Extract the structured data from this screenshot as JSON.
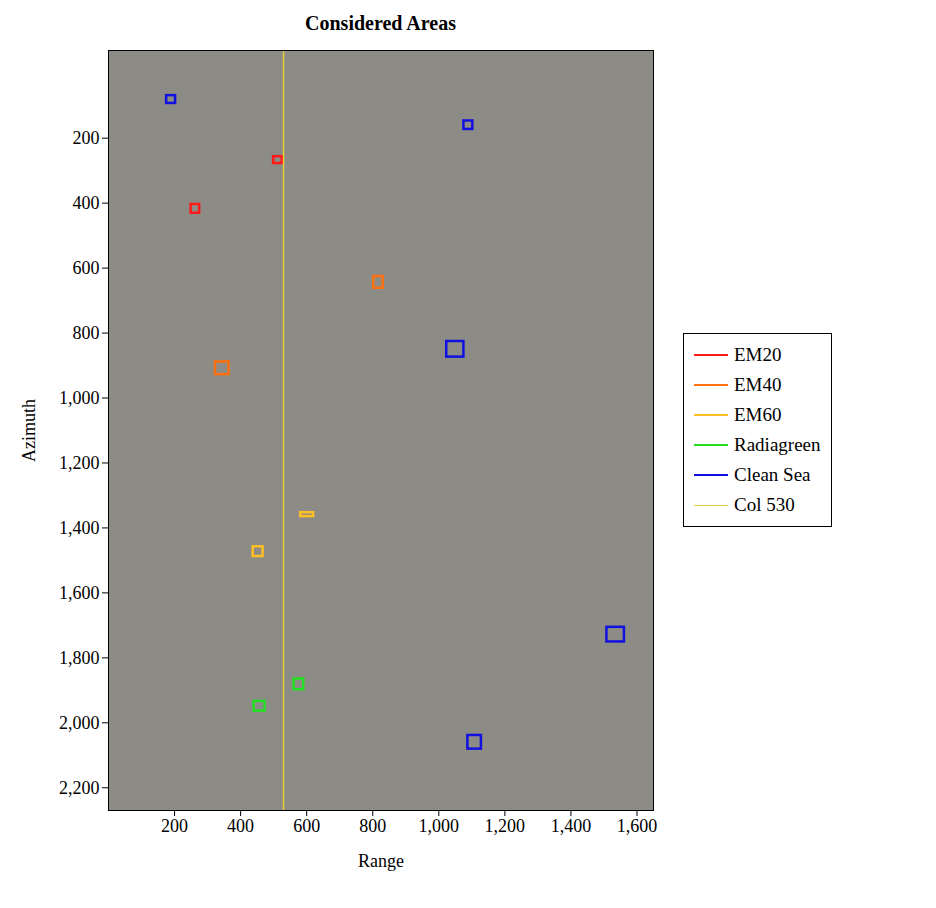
{
  "chart_data": {
    "type": "rect",
    "title": "Considered Areas",
    "x_label": "Range",
    "y_label": "Azimuth",
    "xlim": [
      0,
      1650
    ],
    "ylim": [
      2270,
      -70
    ],
    "xticks": [
      200,
      400,
      600,
      800,
      {
        "value": 1000,
        "label": "1,000"
      },
      {
        "value": 1200,
        "label": "1,200"
      },
      {
        "value": 1400,
        "label": "1,400"
      },
      {
        "value": 1600,
        "label": "1,600"
      }
    ],
    "yticks": [
      200,
      400,
      600,
      800,
      {
        "value": 1000,
        "label": "1,000"
      },
      {
        "value": 1200,
        "label": "1,200"
      },
      {
        "value": 1400,
        "label": "1,400"
      },
      {
        "value": 1600,
        "label": "1,600"
      },
      {
        "value": 1800,
        "label": "1,800"
      },
      {
        "value": 2000,
        "label": "2,000"
      },
      {
        "value": 2200,
        "label": "2,200"
      }
    ],
    "grid": false,
    "legend": "right",
    "series": [
      {
        "name": "EM20",
        "color": "#ff1a1a",
        "type": "rect",
        "values": [
          {
            "x1": 500,
            "x2": 526,
            "y1": 257,
            "y2": 278
          },
          {
            "x1": 250,
            "x2": 276,
            "y1": 404,
            "y2": 431
          }
        ]
      },
      {
        "name": "EM40",
        "color": "#ff7010",
        "type": "rect",
        "values": [
          {
            "x1": 803,
            "x2": 832,
            "y1": 626,
            "y2": 662
          },
          {
            "x1": 324,
            "x2": 365,
            "y1": 889,
            "y2": 928
          }
        ]
      },
      {
        "name": "EM60",
        "color": "#ffbf26",
        "type": "rect",
        "values": [
          {
            "x1": 582,
            "x2": 621,
            "y1": 1353,
            "y2": 1365
          },
          {
            "x1": 438,
            "x2": 468,
            "y1": 1458,
            "y2": 1488
          }
        ]
      },
      {
        "name": "Radiagreen",
        "color": "#22e022",
        "type": "rect",
        "values": [
          {
            "x1": 562,
            "x2": 591,
            "y1": 1865,
            "y2": 1898
          },
          {
            "x1": 441,
            "x2": 474,
            "y1": 1934,
            "y2": 1964
          }
        ]
      },
      {
        "name": "Clean Sea",
        "color": "#1010e0",
        "type": "rect",
        "values": [
          {
            "x1": 176,
            "x2": 203,
            "y1": 69,
            "y2": 93
          },
          {
            "x1": 1076,
            "x2": 1103,
            "y1": 147,
            "y2": 173
          },
          {
            "x1": 1024,
            "x2": 1076,
            "y1": 826,
            "y2": 874
          },
          {
            "x1": 1509,
            "x2": 1562,
            "y1": 1706,
            "y2": 1751
          },
          {
            "x1": 1088,
            "x2": 1129,
            "y1": 2039,
            "y2": 2081
          }
        ]
      },
      {
        "name": "Col 530",
        "color": "#e8cf3a",
        "type": "line",
        "values": [
          530
        ]
      }
    ]
  }
}
